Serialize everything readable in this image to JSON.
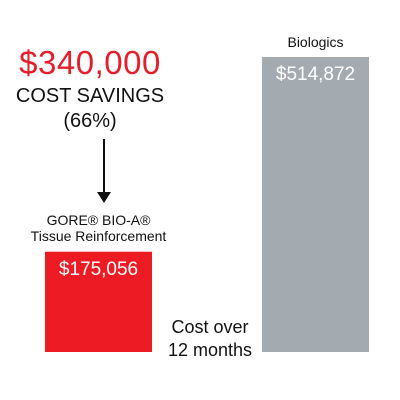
{
  "savings": {
    "amount": "$340,000",
    "label": "COST SAVINGS",
    "percent": "(66%)"
  },
  "caption": {
    "line1": "Cost over",
    "line2": "12 months"
  },
  "colors": {
    "gore": "#ed1c24",
    "biologics": "#a3abb0",
    "accent_text": "#e41e2b"
  },
  "chart_data": {
    "type": "bar",
    "categories": [
      "GORE® BIO-A® Tissue Reinforcement",
      "Biologics"
    ],
    "category_lines": [
      [
        "GORE® BIO-A®",
        "Tissue Reinforcement"
      ],
      [
        "Biologics"
      ]
    ],
    "values": [
      175056,
      514872
    ],
    "value_labels": [
      "$175,056",
      "$514,872"
    ],
    "ylim": [
      0,
      514872
    ],
    "grid": false,
    "legend": "none"
  }
}
